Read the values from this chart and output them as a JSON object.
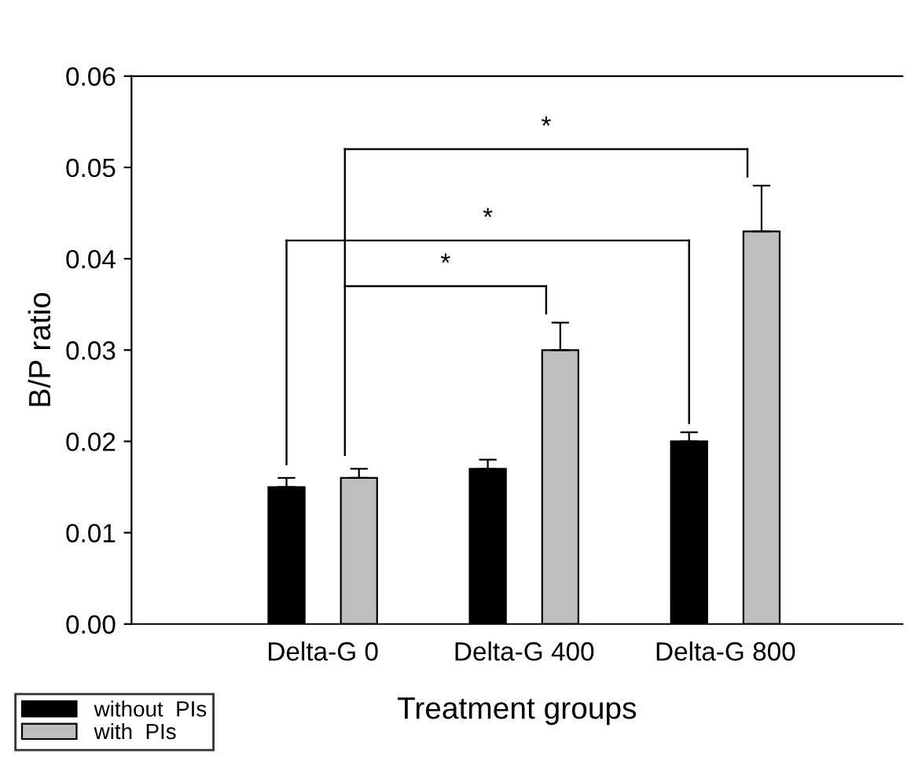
{
  "chart_data": {
    "type": "bar",
    "xlabel": "Treatment groups",
    "ylabel": "B/P ratio",
    "categories": [
      "Delta-G 0",
      "Delta-G 400",
      "Delta-G 800"
    ],
    "series": [
      {
        "name": "without  PIs",
        "color": "#000000",
        "values": [
          0.015,
          0.017,
          0.02
        ],
        "errors": [
          [
            0.015,
            0.016
          ],
          [
            0.017,
            0.018
          ],
          [
            0.02,
            0.021
          ]
        ]
      },
      {
        "name": "with  PIs",
        "color": "#bebebe",
        "values": [
          0.016,
          0.03,
          0.043
        ],
        "errors": [
          [
            0.016,
            0.017
          ],
          [
            0.03,
            0.033
          ],
          [
            0.043,
            0.048
          ]
        ]
      }
    ],
    "ylim": [
      0,
      0.06
    ],
    "yticks": [
      {
        "value": 0,
        "label": "0.00"
      },
      0.01,
      0.02,
      0.03,
      0.04,
      0.05,
      0.06
    ],
    "annotations": [
      "*",
      "*",
      "*"
    ],
    "legend": "bottom left",
    "grid": false
  }
}
